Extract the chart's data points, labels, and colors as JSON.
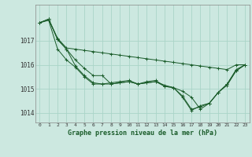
{
  "title": "Graphe pression niveau de la mer (hPa)",
  "bg_color": "#cce8e0",
  "grid_color": "#aad4c8",
  "line_color": "#1a5c2a",
  "ylim": [
    1013.6,
    1018.5
  ],
  "xlim": [
    -0.5,
    23.5
  ],
  "yticks": [
    1014,
    1015,
    1016,
    1017
  ],
  "xticks": [
    0,
    1,
    2,
    3,
    4,
    5,
    6,
    7,
    8,
    9,
    10,
    11,
    12,
    13,
    14,
    15,
    16,
    17,
    18,
    19,
    20,
    21,
    22,
    23
  ],
  "series": [
    [
      1017.75,
      1017.9,
      1017.1,
      1016.7,
      1016.65,
      1016.6,
      1016.55,
      1016.5,
      1016.45,
      1016.4,
      1016.35,
      1016.3,
      1016.25,
      1016.2,
      1016.15,
      1016.1,
      1016.05,
      1016.0,
      1015.95,
      1015.9,
      1015.85,
      1015.8,
      1016.0,
      1016.0
    ],
    [
      1017.75,
      1017.9,
      1017.05,
      1016.65,
      1016.2,
      1015.85,
      1015.55,
      1015.55,
      1015.2,
      1015.25,
      1015.3,
      1015.2,
      1015.3,
      1015.35,
      1015.1,
      1015.05,
      1014.9,
      1014.65,
      1014.15,
      1014.4,
      1014.85,
      1015.2,
      1015.8,
      1016.0
    ],
    [
      1017.75,
      1017.9,
      1017.05,
      1016.65,
      1015.95,
      1015.55,
      1015.25,
      1015.2,
      1015.2,
      1015.25,
      1015.3,
      1015.2,
      1015.25,
      1015.3,
      1015.1,
      1015.05,
      1014.7,
      1014.15,
      1014.25,
      1014.4,
      1014.85,
      1015.2,
      1015.75,
      1016.0
    ],
    [
      1017.75,
      1017.85,
      1016.65,
      1016.2,
      1015.9,
      1015.5,
      1015.2,
      1015.2,
      1015.25,
      1015.3,
      1015.35,
      1015.2,
      1015.25,
      1015.3,
      1015.15,
      1015.05,
      1014.65,
      1014.1,
      1014.3,
      1014.4,
      1014.85,
      1015.15,
      1015.75,
      1016.0
    ]
  ]
}
